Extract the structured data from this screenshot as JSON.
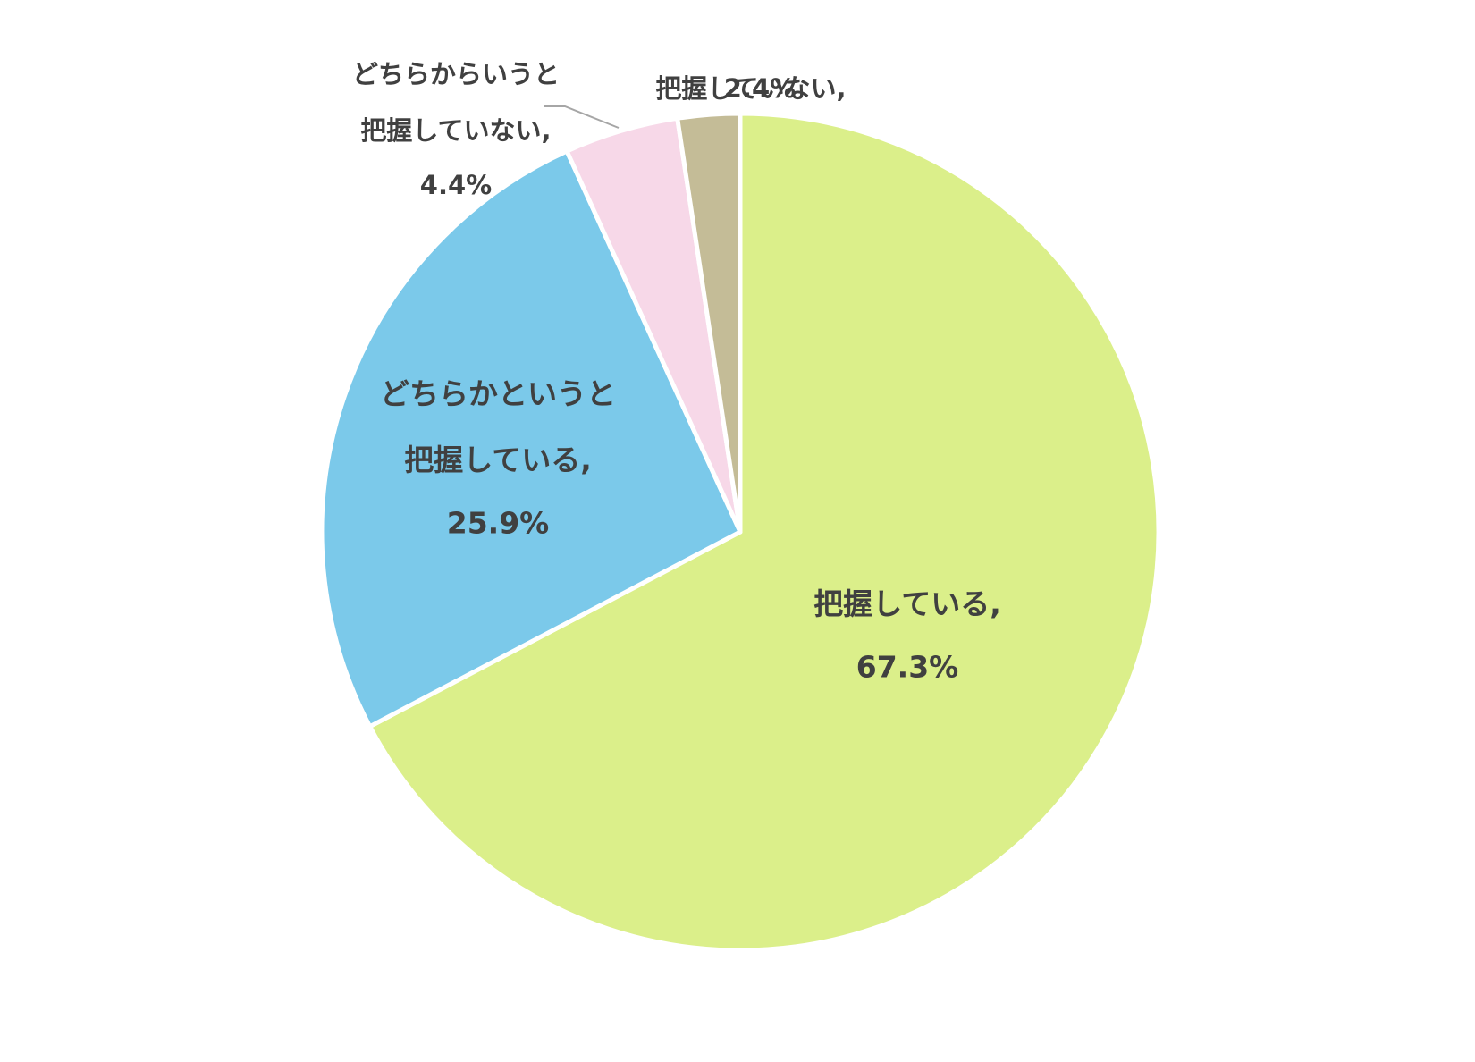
{
  "chart_data": {
    "type": "pie",
    "categories": [
      "把握している,",
      "どちらかというと\n把握している,",
      "どちらからいうと\n把握していない,",
      "把握していない,"
    ],
    "values": [
      67.3,
      25.9,
      4.4,
      2.4
    ],
    "value_labels": [
      "67.3%",
      "25.9%",
      "4.4%",
      "2.4%"
    ],
    "colors": [
      "#dbef8a",
      "#7bc9ea",
      "#f7d8e8",
      "#c4bc97"
    ]
  }
}
